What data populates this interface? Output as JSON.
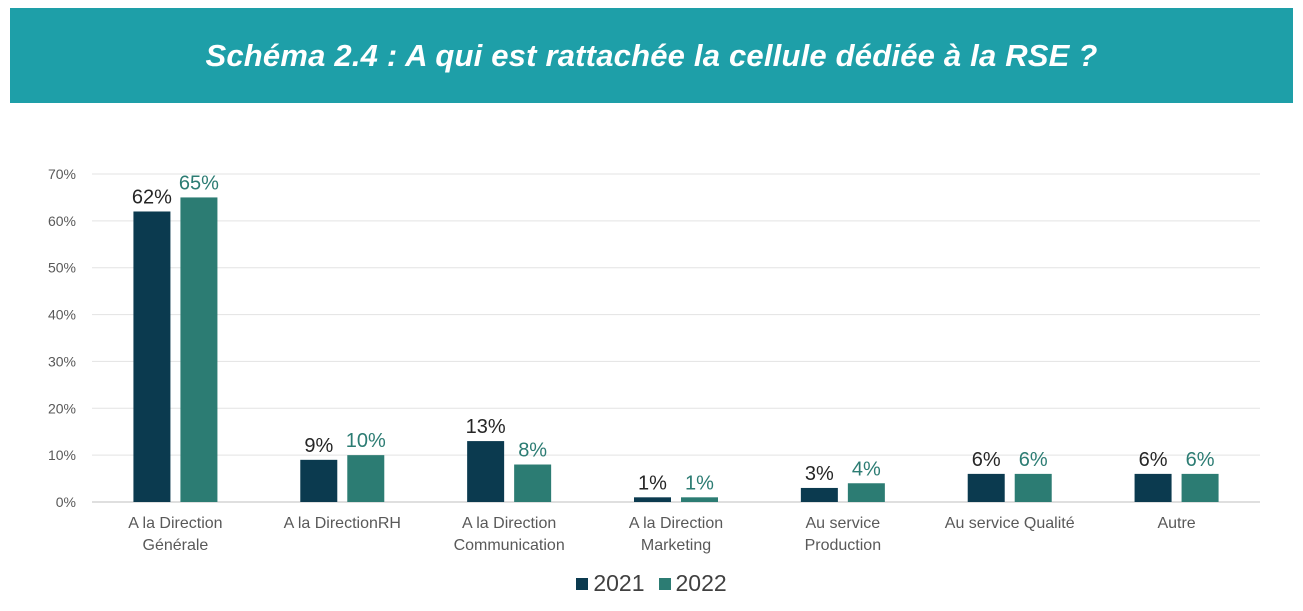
{
  "banner": {
    "title": "Schéma 2.4 : A qui est rattachée la cellule dédiée à la RSE ?"
  },
  "colors": {
    "banner": "#1e9fa8",
    "series_2021": "#0b3a4f",
    "series_2022": "#2c7c73",
    "label_2021": "#262626",
    "label_2022": "#2c7c73"
  },
  "chart_data": {
    "type": "bar",
    "title": "",
    "xlabel": "",
    "ylabel": "",
    "ylim": [
      0,
      70
    ],
    "yticks": [
      "0%",
      "10%",
      "20%",
      "30%",
      "40%",
      "50%",
      "60%",
      "70%"
    ],
    "grid": true,
    "legend_position": "bottom",
    "categories": [
      [
        "A la Direction",
        "Générale"
      ],
      [
        "A la DirectionRH"
      ],
      [
        "A la Direction",
        "Communication"
      ],
      [
        "A la Direction",
        "Marketing"
      ],
      [
        "Au service",
        "Production"
      ],
      [
        "Au service Qualité"
      ],
      [
        "Autre"
      ]
    ],
    "series": [
      {
        "name": "2021",
        "values": [
          62,
          9,
          13,
          1,
          3,
          6,
          6
        ],
        "labels": [
          "62%",
          "9%",
          "13%",
          "1%",
          "3%",
          "6%",
          "6%"
        ]
      },
      {
        "name": "2022",
        "values": [
          65,
          10,
          8,
          1,
          4,
          6,
          6
        ],
        "labels": [
          "65%",
          "10%",
          "8%",
          "1%",
          "4%",
          "6%",
          "6%"
        ]
      }
    ]
  }
}
